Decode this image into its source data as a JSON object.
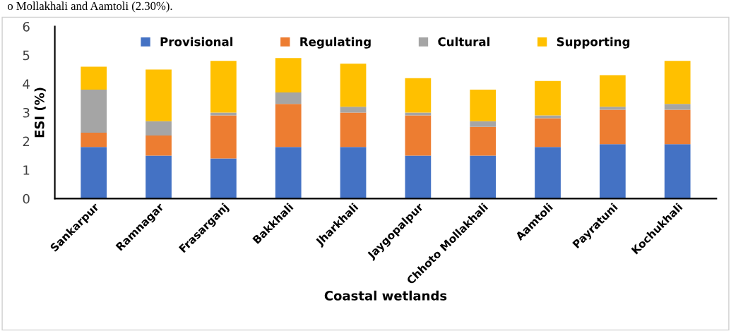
{
  "chart_data": {
    "type": "bar",
    "stacked": true,
    "xlabel": "Coastal wetlands",
    "ylabel": "ESI (%)",
    "annotations": [
      "o Mollakhali and Aamtoli (2.30%)."
    ],
    "categories": [
      "Sankarpur",
      "Ramnagar",
      "Frasarganj",
      "Bakkhali",
      "Jharkhali",
      "Jaygopalpur",
      "Chhoto Mollakhali",
      "Aamtoli",
      "Payratuni",
      "Kochukhali"
    ],
    "series": [
      {
        "name": "Provisional",
        "color": "#4472c4",
        "values": [
          1.8,
          1.5,
          1.4,
          1.8,
          1.8,
          1.5,
          1.5,
          1.8,
          1.9,
          1.9
        ]
      },
      {
        "name": "Regulating",
        "color": "#ed7d31",
        "values": [
          0.5,
          0.7,
          1.5,
          1.5,
          1.2,
          1.4,
          1.0,
          1.0,
          1.2,
          1.2
        ]
      },
      {
        "name": "Cultural",
        "color": "#a5a5a5",
        "values": [
          1.5,
          0.5,
          0.1,
          0.4,
          0.2,
          0.1,
          0.2,
          0.1,
          0.1,
          0.2
        ]
      },
      {
        "name": "Supporting",
        "color": "#ffc000",
        "values": [
          0.8,
          1.8,
          1.8,
          1.2,
          1.5,
          1.2,
          1.1,
          1.2,
          1.1,
          1.5
        ]
      }
    ],
    "ylim": [
      0,
      6
    ],
    "yticks": [
      0,
      1,
      2,
      3,
      4,
      5,
      6
    ],
    "grid": false,
    "legend": "top"
  }
}
